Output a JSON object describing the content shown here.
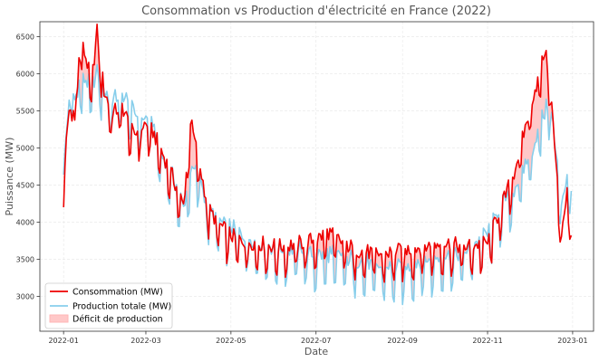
{
  "chart_data": {
    "type": "line",
    "title": "Consommation vs Production d'électricité en France (2022)",
    "xlabel": "Date",
    "ylabel": "Puissance (MW)",
    "x_range": [
      "2021-12-15",
      "2023-01-16"
    ],
    "ylim": [
      2530,
      6700
    ],
    "x_ticks": [
      "2022-01",
      "2022-03",
      "2022-05",
      "2022-07",
      "2022-09",
      "2022-11",
      "2023-01"
    ],
    "y_ticks": [
      3000,
      3500,
      4000,
      4500,
      5000,
      5500,
      6000,
      6500
    ],
    "grid": true,
    "legend_position": "bottom-left",
    "colors": {
      "consumption": "#ee0000",
      "production": "#87ceeb",
      "deficit": "#ffb6b6"
    },
    "legend": [
      "Consommation (MW)",
      "Production totale (MW)",
      "Déficit de production"
    ],
    "series": [
      {
        "name": "Consommation (MW)",
        "anchors": [
          [
            "2022-01-01",
            4200
          ],
          [
            "2022-01-03",
            5050
          ],
          [
            "2022-01-06",
            5700
          ],
          [
            "2022-01-09",
            5300
          ],
          [
            "2022-01-13",
            6400
          ],
          [
            "2022-01-17",
            6150
          ],
          [
            "2022-01-21",
            5800
          ],
          [
            "2022-01-25",
            6500
          ],
          [
            "2022-01-30",
            5700
          ],
          [
            "2022-02-05",
            5400
          ],
          [
            "2022-02-12",
            5500
          ],
          [
            "2022-02-20",
            5100
          ],
          [
            "2022-02-28",
            5250
          ],
          [
            "2022-03-06",
            5150
          ],
          [
            "2022-03-12",
            4900
          ],
          [
            "2022-03-20",
            4550
          ],
          [
            "2022-03-28",
            4150
          ],
          [
            "2022-04-02",
            5300
          ],
          [
            "2022-04-08",
            4750
          ],
          [
            "2022-04-15",
            4100
          ],
          [
            "2022-04-25",
            3850
          ],
          [
            "2022-05-05",
            3700
          ],
          [
            "2022-05-20",
            3650
          ],
          [
            "2022-06-05",
            3600
          ],
          [
            "2022-06-20",
            3650
          ],
          [
            "2022-07-01",
            3700
          ],
          [
            "2022-07-10",
            3800
          ],
          [
            "2022-07-20",
            3650
          ],
          [
            "2022-08-01",
            3550
          ],
          [
            "2022-08-15",
            3500
          ],
          [
            "2022-09-01",
            3550
          ],
          [
            "2022-09-15",
            3600
          ],
          [
            "2022-10-01",
            3650
          ],
          [
            "2022-10-15",
            3600
          ],
          [
            "2022-11-01",
            3650
          ],
          [
            "2022-11-10",
            4100
          ],
          [
            "2022-11-20",
            4600
          ],
          [
            "2022-11-28",
            5200
          ],
          [
            "2022-12-03",
            5600
          ],
          [
            "2022-12-08",
            5900
          ],
          [
            "2022-12-12",
            6250
          ],
          [
            "2022-12-16",
            5800
          ],
          [
            "2022-12-20",
            4700
          ],
          [
            "2022-12-24",
            3800
          ],
          [
            "2022-12-28",
            4350
          ],
          [
            "2022-12-31",
            3850
          ]
        ]
      },
      {
        "name": "Production totale (MW)",
        "anchors": [
          [
            "2022-01-01",
            4650
          ],
          [
            "2022-01-03",
            5100
          ],
          [
            "2022-01-06",
            5800
          ],
          [
            "2022-01-09",
            5550
          ],
          [
            "2022-01-13",
            5850
          ],
          [
            "2022-01-17",
            5800
          ],
          [
            "2022-01-21",
            5750
          ],
          [
            "2022-01-25",
            5950
          ],
          [
            "2022-01-30",
            5700
          ],
          [
            "2022-02-05",
            5550
          ],
          [
            "2022-02-12",
            5650
          ],
          [
            "2022-02-20",
            5400
          ],
          [
            "2022-02-28",
            5300
          ],
          [
            "2022-03-06",
            5250
          ],
          [
            "2022-03-12",
            4800
          ],
          [
            "2022-03-20",
            4550
          ],
          [
            "2022-03-28",
            4100
          ],
          [
            "2022-04-02",
            4600
          ],
          [
            "2022-04-08",
            4600
          ],
          [
            "2022-04-15",
            4050
          ],
          [
            "2022-04-25",
            3900
          ],
          [
            "2022-05-05",
            3800
          ],
          [
            "2022-05-20",
            3650
          ],
          [
            "2022-06-05",
            3550
          ],
          [
            "2022-06-20",
            3550
          ],
          [
            "2022-07-01",
            3450
          ],
          [
            "2022-07-10",
            3500
          ],
          [
            "2022-07-20",
            3450
          ],
          [
            "2022-08-01",
            3400
          ],
          [
            "2022-08-15",
            3300
          ],
          [
            "2022-09-01",
            3300
          ],
          [
            "2022-09-15",
            3400
          ],
          [
            "2022-10-01",
            3450
          ],
          [
            "2022-10-15",
            3500
          ],
          [
            "2022-11-01",
            3750
          ],
          [
            "2022-11-10",
            4100
          ],
          [
            "2022-11-20",
            4350
          ],
          [
            "2022-11-28",
            4700
          ],
          [
            "2022-12-03",
            4900
          ],
          [
            "2022-12-08",
            5200
          ],
          [
            "2022-12-12",
            5400
          ],
          [
            "2022-12-16",
            5600
          ],
          [
            "2022-12-20",
            4800
          ],
          [
            "2022-12-24",
            4200
          ],
          [
            "2022-12-28",
            4500
          ],
          [
            "2022-12-31",
            4400
          ]
        ]
      }
    ]
  }
}
